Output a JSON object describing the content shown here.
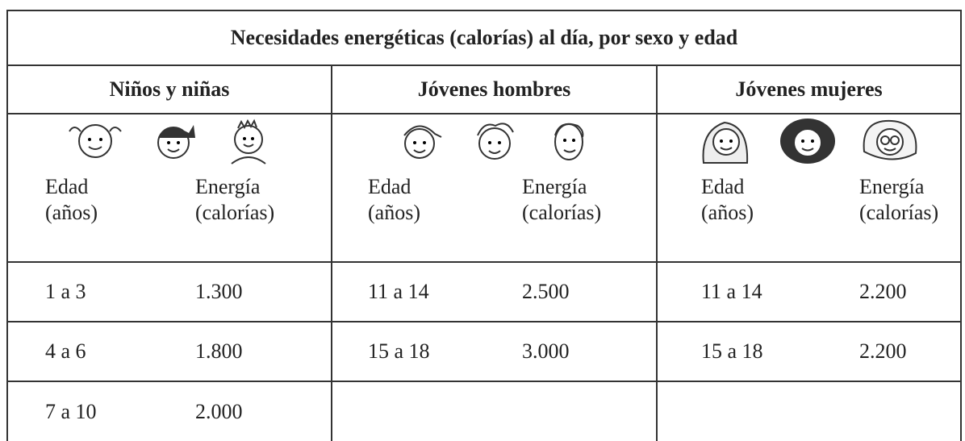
{
  "table": {
    "title": "Necesidades energéticas (calorías) al día, por sexo y edad",
    "groups": [
      {
        "name": "Niños y niñas",
        "headers": [
          "Edad\n(años)",
          "Energía\n(calorías)"
        ],
        "rows": [
          [
            "1 a 3",
            "1.300"
          ],
          [
            "4 a 6",
            "1.800"
          ],
          [
            "7 a 10",
            "2.000"
          ]
        ]
      },
      {
        "name": "Jóvenes hombres",
        "headers": [
          "Edad\n(años)",
          "Energía\n(calorías)"
        ],
        "rows": [
          [
            "11 a 14",
            "2.500"
          ],
          [
            "15 a 18",
            "3.000"
          ]
        ]
      },
      {
        "name": "Jóvenes mujeres",
        "headers": [
          "Edad\n(años)",
          "Energía\n(calorías)"
        ],
        "rows": [
          [
            "11 a 14",
            "2.200"
          ],
          [
            "15 a 18",
            "2.200"
          ]
        ]
      }
    ]
  }
}
